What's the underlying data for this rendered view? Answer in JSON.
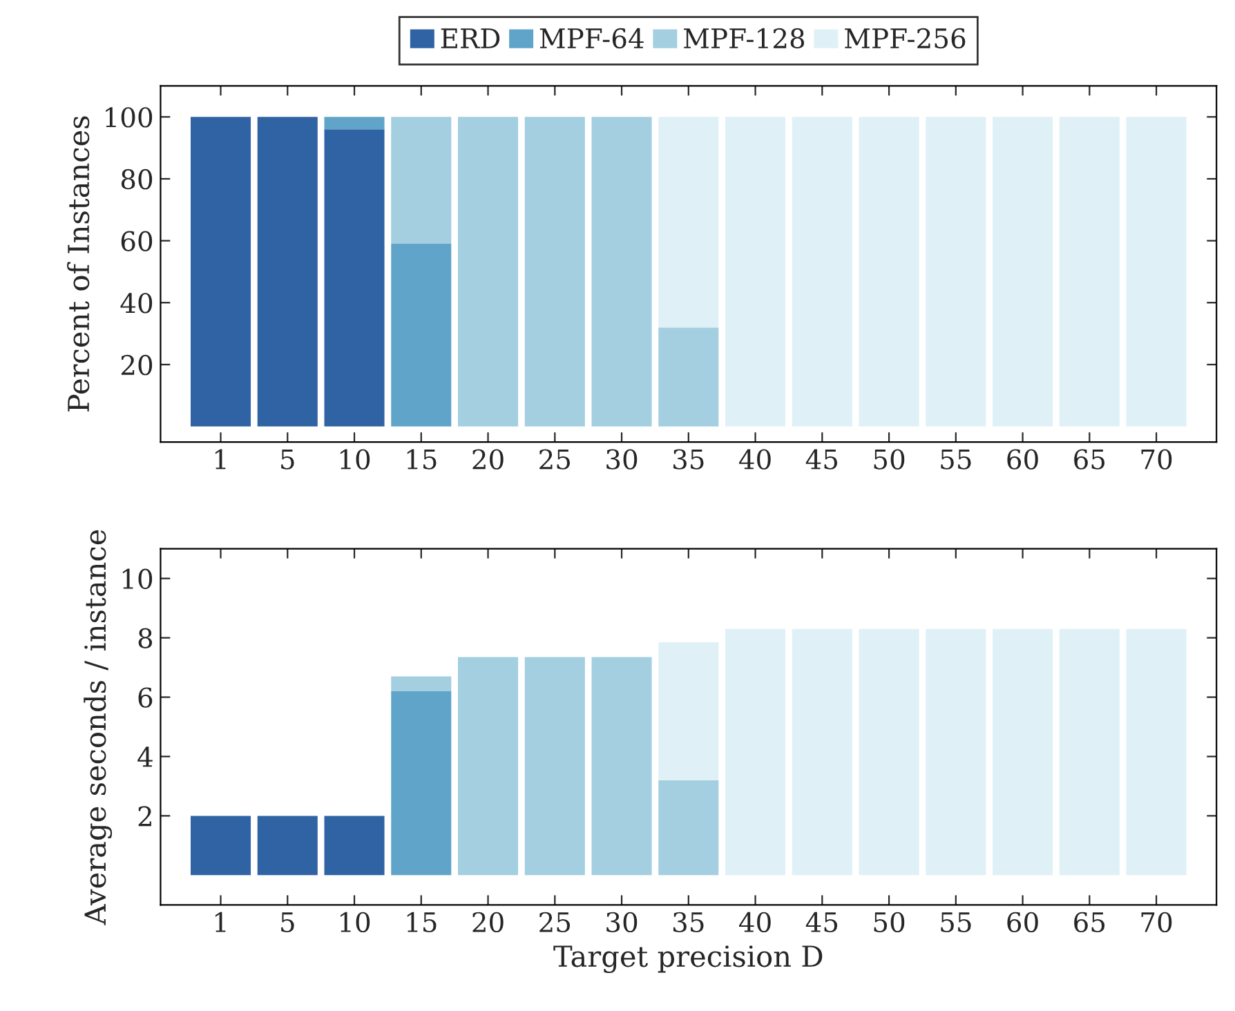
{
  "chart_data": [
    {
      "type": "bar",
      "stacked": true,
      "ylabel": "Percent of Instances",
      "categories": [
        "1",
        "5",
        "10",
        "15",
        "20",
        "25",
        "30",
        "35",
        "40",
        "45",
        "50",
        "55",
        "60",
        "65",
        "70"
      ],
      "ylim": [
        -5,
        110
      ],
      "yticks": [
        20,
        40,
        60,
        80,
        100
      ],
      "grid": false,
      "legend": "top",
      "series": [
        {
          "name": "ERD",
          "color": "#3063a3",
          "values": [
            100,
            100,
            96,
            0,
            0,
            0,
            0,
            0,
            0,
            0,
            0,
            0,
            0,
            0,
            0
          ]
        },
        {
          "name": "MPF-64",
          "color": "#60a5c9",
          "values": [
            0,
            0,
            4,
            59,
            0,
            0,
            0,
            0,
            0,
            0,
            0,
            0,
            0,
            0,
            0
          ]
        },
        {
          "name": "MPF-128",
          "color": "#a3cfe0",
          "values": [
            0,
            0,
            0,
            41,
            100,
            100,
            100,
            32,
            0,
            0,
            0,
            0,
            0,
            0,
            0
          ]
        },
        {
          "name": "MPF-256",
          "color": "#dff1f7",
          "values": [
            0,
            0,
            0,
            0,
            0,
            0,
            0,
            68,
            100,
            100,
            100,
            100,
            100,
            100,
            100
          ]
        }
      ]
    },
    {
      "type": "bar",
      "stacked": true,
      "ylabel": "Average seconds / instance",
      "xlabel": "Target precision D",
      "categories": [
        "1",
        "5",
        "10",
        "15",
        "20",
        "25",
        "30",
        "35",
        "40",
        "45",
        "50",
        "55",
        "60",
        "65",
        "70"
      ],
      "ylim": [
        -1,
        11
      ],
      "yticks": [
        2,
        4,
        6,
        8,
        10
      ],
      "grid": false,
      "series": [
        {
          "color": "#3063a3",
          "values": [
            2,
            2,
            2,
            0,
            0,
            0,
            0,
            0,
            0,
            0,
            0,
            0,
            0,
            0,
            0
          ]
        },
        {
          "color": "#60a5c9",
          "values": [
            0,
            0,
            0,
            6.2,
            0,
            0,
            0,
            0,
            0,
            0,
            0,
            0,
            0,
            0,
            0
          ]
        },
        {
          "color": "#a3cfe0",
          "values": [
            0,
            0,
            0,
            0.5,
            7.35,
            7.35,
            7.35,
            3.2,
            0,
            0,
            0,
            0,
            0,
            0,
            0
          ]
        },
        {
          "color": "#dff1f7",
          "values": [
            0,
            0,
            0,
            0,
            0,
            0,
            0,
            4.65,
            8.3,
            8.3,
            8.3,
            8.3,
            8.3,
            8.3,
            8.3
          ]
        }
      ]
    }
  ]
}
